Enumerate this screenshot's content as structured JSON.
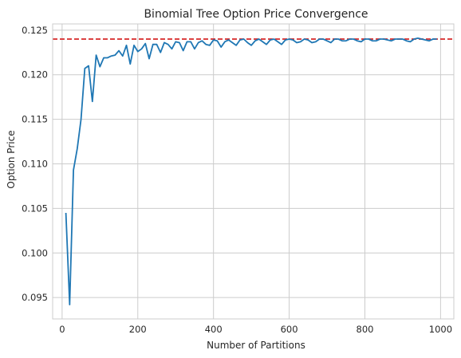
{
  "chart_data": {
    "type": "line",
    "title": "Binomial Tree Option Price Convergence",
    "xlabel": "Number of Partitions",
    "ylabel": "Option Price",
    "xlim": [
      -25,
      1035
    ],
    "ylim": [
      0.0926,
      0.1257
    ],
    "xticks": [
      0,
      200,
      400,
      600,
      800,
      1000
    ],
    "yticks": [
      0.095,
      0.1,
      0.105,
      0.11,
      0.115,
      0.12,
      0.125
    ],
    "ytick_labels": [
      "0.095",
      "0.100",
      "0.105",
      "0.110",
      "0.115",
      "0.120",
      "0.125"
    ],
    "grid": true,
    "line_color": "#1f77b4",
    "reference_line": {
      "y": 0.124,
      "color": "#d62728",
      "style": "dashed"
    },
    "series": [
      {
        "x": [
          10,
          20,
          30,
          40,
          50,
          60,
          70,
          80,
          90,
          100,
          110,
          120,
          130,
          140,
          150,
          160,
          170,
          180,
          190,
          200,
          210,
          220,
          230,
          240,
          250,
          260,
          270,
          280,
          290,
          300,
          310,
          320,
          330,
          340,
          350,
          360,
          370,
          380,
          390,
          400,
          410,
          420,
          430,
          440,
          450,
          460,
          470,
          480,
          490,
          500,
          510,
          520,
          530,
          540,
          550,
          560,
          570,
          580,
          590,
          600,
          610,
          620,
          630,
          640,
          650,
          660,
          670,
          680,
          690,
          700,
          710,
          720,
          730,
          740,
          750,
          760,
          770,
          780,
          790,
          800,
          810,
          820,
          830,
          840,
          850,
          860,
          870,
          880,
          890,
          900,
          910,
          920,
          930,
          940,
          950,
          960,
          970,
          980,
          990
        ],
        "values": [
          0.1045,
          0.0942,
          0.1093,
          0.1117,
          0.115,
          0.1207,
          0.121,
          0.117,
          0.1222,
          0.1209,
          0.1219,
          0.1219,
          0.1221,
          0.1222,
          0.1227,
          0.1221,
          0.1233,
          0.1212,
          0.1233,
          0.1226,
          0.1229,
          0.1235,
          0.1218,
          0.1234,
          0.1234,
          0.1225,
          0.1236,
          0.1234,
          0.1229,
          0.1237,
          0.1236,
          0.1227,
          0.1237,
          0.1237,
          0.1229,
          0.1236,
          0.1238,
          0.1234,
          0.1233,
          0.1239,
          0.1238,
          0.1231,
          0.1237,
          0.1239,
          0.1236,
          0.1233,
          0.1239,
          0.124,
          0.1236,
          0.1233,
          0.1238,
          0.124,
          0.1237,
          0.1234,
          0.1239,
          0.124,
          0.1237,
          0.1234,
          0.1239,
          0.124,
          0.1239,
          0.1236,
          0.1237,
          0.124,
          0.1239,
          0.1236,
          0.1237,
          0.124,
          0.124,
          0.1238,
          0.1236,
          0.124,
          0.124,
          0.1238,
          0.1238,
          0.124,
          0.124,
          0.1238,
          0.1237,
          0.124,
          0.124,
          0.1238,
          0.1238,
          0.124,
          0.124,
          0.1239,
          0.1238,
          0.124,
          0.124,
          0.124,
          0.1238,
          0.1237,
          0.124,
          0.1241,
          0.124,
          0.1239,
          0.1238,
          0.124,
          0.124
        ]
      }
    ]
  }
}
